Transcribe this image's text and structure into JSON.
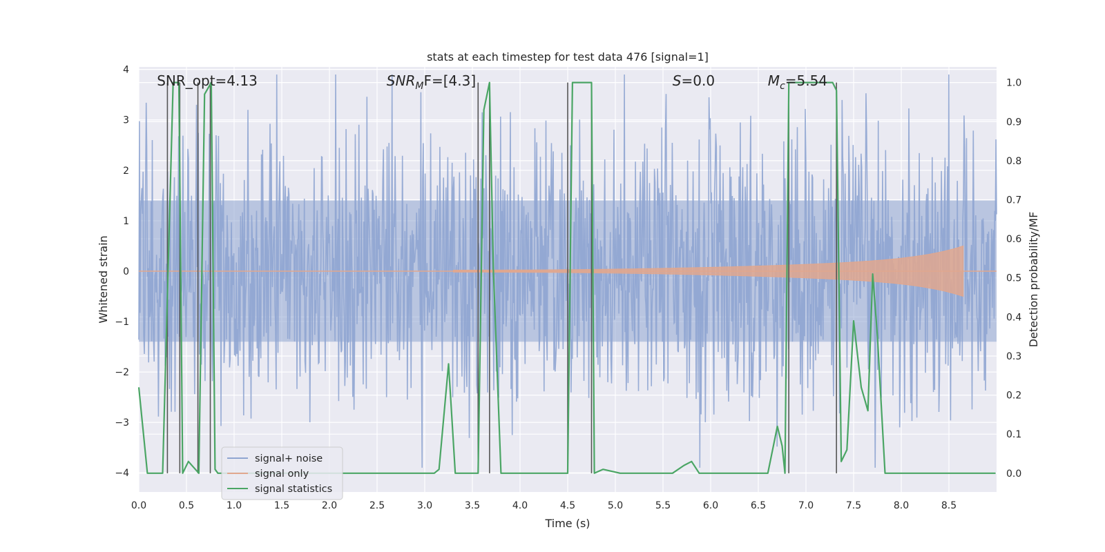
{
  "chart_data": {
    "type": "line",
    "title": "stats at each timestep for test data 476 [signal=1]",
    "xlabel": "Time (s)",
    "ylabel_left": "Whitened strain",
    "ylabel_right": "Detection probability/MF",
    "xlim": [
      0.0,
      9.0
    ],
    "ylim_left": [
      -4.38,
      4.05
    ],
    "ylim_right": [
      -0.048,
      1.04
    ],
    "x_ticks": [
      "0.0",
      "0.5",
      "1.0",
      "1.5",
      "2.0",
      "2.5",
      "3.0",
      "3.5",
      "4.0",
      "4.5",
      "5.0",
      "5.5",
      "6.0",
      "6.5",
      "7.0",
      "7.5",
      "8.0",
      "8.5"
    ],
    "y_left_ticks": [
      "-4",
      "-3",
      "-2",
      "-1",
      "0",
      "1",
      "2",
      "3",
      "4"
    ],
    "y_right_ticks": [
      "0.0",
      "0.1",
      "0.2",
      "0.3",
      "0.4",
      "0.5",
      "0.6",
      "0.7",
      "0.8",
      "0.9",
      "1.0"
    ],
    "grid": true,
    "legend_position": "lower-left",
    "annotations": [
      {
        "text": "SNR_opt=4.13",
        "x": 0.19
      },
      {
        "text_main": "SNR",
        "text_sub": "M",
        "text_rest": "F=[4.3]",
        "x": 2.6
      },
      {
        "text_main": "S",
        "text_sub": "",
        "text_rest": "=0.0",
        "x": 5.6
      },
      {
        "text_main": "M",
        "text_sub": "c",
        "text_rest": "=5.54",
        "x": 6.6
      }
    ],
    "series": [
      {
        "name": "signal+ noise",
        "color": "#8fa5d1",
        "kind": "noise",
        "band_amplitude": 1.4,
        "peak_amplitude": 3.9,
        "n_samples": 1400
      },
      {
        "name": "signal only",
        "color": "#e1a78e",
        "kind": "chirp",
        "start_time": 3.3,
        "end_time": 8.65,
        "max_amplitude": 0.5
      },
      {
        "name": "signal statistics",
        "color": "#4aa564",
        "kind": "step",
        "x": [
          0.0,
          0.09,
          0.25,
          0.36,
          0.42,
          0.46,
          0.52,
          0.63,
          0.69,
          0.76,
          0.8,
          0.83,
          3.1,
          3.15,
          3.25,
          3.32,
          3.56,
          3.62,
          3.68,
          3.72,
          3.8,
          4.5,
          4.55,
          4.58,
          4.75,
          4.78,
          4.87,
          5.05,
          5.6,
          5.72,
          5.8,
          5.88,
          6.6,
          6.7,
          6.75,
          6.78,
          6.82,
          6.88,
          7.28,
          7.32,
          7.37,
          7.43,
          7.5,
          7.58,
          7.65,
          7.7,
          7.75,
          7.83,
          8.99
        ],
        "y": [
          0.22,
          0.0,
          0.0,
          1.0,
          1.0,
          0.0,
          0.03,
          0.0,
          0.97,
          1.0,
          0.01,
          0.0,
          0.0,
          0.01,
          0.28,
          0.0,
          0.0,
          0.93,
          1.0,
          0.52,
          0.0,
          0.0,
          1.0,
          1.0,
          1.0,
          0.0,
          0.01,
          0.0,
          0.0,
          0.02,
          0.03,
          0.0,
          0.0,
          0.12,
          0.07,
          0.0,
          1.0,
          1.0,
          1.0,
          0.98,
          0.03,
          0.06,
          0.39,
          0.22,
          0.16,
          0.51,
          0.35,
          0.0,
          0.0
        ]
      }
    ],
    "vertical_lines": [
      0.3,
      0.43,
      0.62,
      0.75,
      3.56,
      3.68,
      4.5,
      4.75,
      6.82,
      7.32
    ]
  }
}
